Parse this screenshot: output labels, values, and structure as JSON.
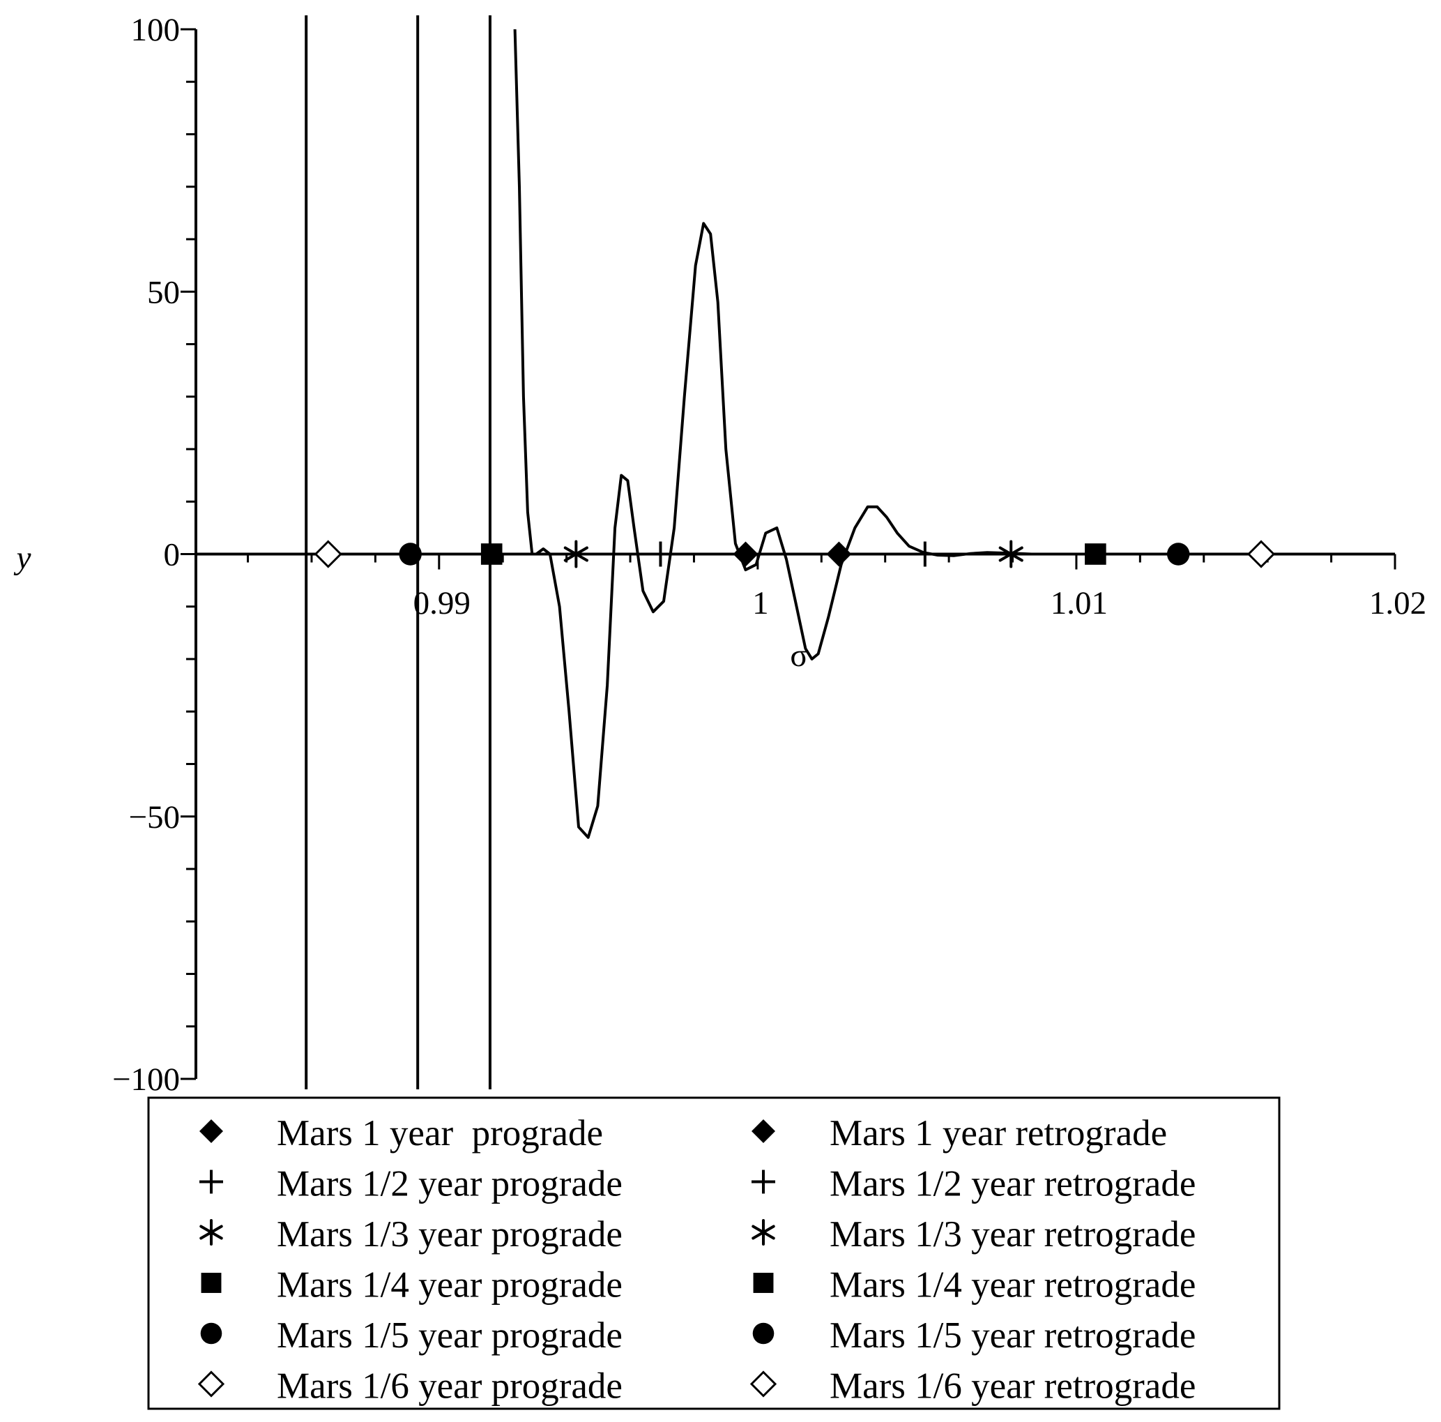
{
  "chart_data": {
    "type": "line",
    "xlabel": "σ",
    "ylabel": "y",
    "xlim": [
      0.9825,
      1.02
    ],
    "ylim": [
      -100,
      100
    ],
    "x_ticks": [
      {
        "value": 0.99,
        "label": "0.99"
      },
      {
        "value": 1.0,
        "label": "1"
      },
      {
        "value": 1.01,
        "label": "1.01"
      },
      {
        "value": 1.02,
        "label": "1.02"
      }
    ],
    "y_ticks": [
      {
        "value": 100,
        "label": "100"
      },
      {
        "value": 50,
        "label": "50"
      },
      {
        "value": 0,
        "label": "0"
      },
      {
        "value": -50,
        "label": "−50"
      },
      {
        "value": -100,
        "label": "−100"
      }
    ],
    "vertical_lines_x": [
      0.98583,
      0.98933,
      0.9916
    ],
    "curve": {
      "x": [
        0.99238,
        0.99252,
        0.99265,
        0.99278,
        0.99292,
        0.99305,
        0.99327,
        0.99348,
        0.99378,
        0.99408,
        0.99438,
        0.99468,
        0.99498,
        0.99528,
        0.99552,
        0.99572,
        0.99592,
        0.99612,
        0.9964,
        0.99672,
        0.99705,
        0.99738,
        0.9977,
        0.99805,
        0.9983,
        0.99852,
        0.99875,
        0.999,
        0.9993,
        0.99962,
        0.99995,
        1.00025,
        1.0006,
        1.0009,
        1.00122,
        1.0015,
        1.0017,
        1.0019,
        1.00222,
        1.00262,
        1.00305,
        1.00345,
        1.00375,
        1.00405,
        1.00438,
        1.00475,
        1.0052,
        1.00565,
        1.00615,
        1.00668,
        1.0072,
        1.00775,
        1.0082,
        1.0086,
        1.00905,
        1.00955,
        1.0101,
        1.0106,
        1.0111,
        1.01165,
        1.01225,
        1.0129,
        1.0136,
        1.0144,
        1.0152,
        1.0162,
        1.0175,
        1.019,
        1.02
      ],
      "y": [
        100,
        70,
        30,
        8,
        0,
        0,
        1,
        0,
        -10,
        -30,
        -52,
        -54,
        -48,
        -25,
        5,
        15,
        14,
        5,
        -7,
        -11,
        -9,
        5,
        30,
        55,
        63,
        61,
        48,
        20,
        2,
        -3,
        -2,
        4,
        5,
        -1,
        -10,
        -18,
        -20,
        -19,
        -12,
        -2,
        5,
        9,
        9,
        7,
        4,
        1.5,
        0.3,
        -0.2,
        -0.3,
        0.1,
        0.3,
        0.2,
        0.1,
        0,
        0,
        0,
        0,
        0,
        0,
        0,
        0,
        0,
        0,
        0,
        0,
        0,
        0,
        0,
        0
      ]
    },
    "markers": [
      {
        "x": 0.98652,
        "y": 0,
        "shape": "diamond-open"
      },
      {
        "x": 0.9891,
        "y": 0,
        "shape": "circle"
      },
      {
        "x": 0.99165,
        "y": 0,
        "shape": "square"
      },
      {
        "x": 0.9943,
        "y": 0,
        "shape": "asterisk"
      },
      {
        "x": 0.99695,
        "y": 0,
        "shape": "plus"
      },
      {
        "x": 0.99962,
        "y": 0,
        "shape": "diamond"
      },
      {
        "x": 1.00255,
        "y": 0,
        "shape": "diamond"
      },
      {
        "x": 1.00525,
        "y": 0,
        "shape": "plus"
      },
      {
        "x": 1.00795,
        "y": 0,
        "shape": "asterisk"
      },
      {
        "x": 1.0106,
        "y": 0,
        "shape": "square"
      },
      {
        "x": 1.0132,
        "y": 0,
        "shape": "circle"
      },
      {
        "x": 1.0158,
        "y": 0,
        "shape": "diamond-open"
      }
    ],
    "legend": {
      "placement": "bottom",
      "entries": [
        {
          "shape": "diamond",
          "label": "Mars 1 year  prograde"
        },
        {
          "shape": "diamond",
          "label": "Mars 1 year retrograde"
        },
        {
          "shape": "plus",
          "label": "Mars 1/2 year prograde"
        },
        {
          "shape": "plus",
          "label": "Mars 1/2 year retrograde"
        },
        {
          "shape": "asterisk",
          "label": "Mars 1/3 year prograde"
        },
        {
          "shape": "asterisk",
          "label": "Mars 1/3 year retrograde"
        },
        {
          "shape": "square",
          "label": "Mars 1/4 year prograde"
        },
        {
          "shape": "square",
          "label": "Mars 1/4 year retrograde"
        },
        {
          "shape": "circle",
          "label": "Mars 1/5 year prograde"
        },
        {
          "shape": "circle",
          "label": "Mars 1/5 year retrograde"
        },
        {
          "shape": "diamond-open",
          "label": "Mars 1/6 year prograde"
        },
        {
          "shape": "diamond-open",
          "label": "Mars 1/6 year retrograde"
        }
      ]
    },
    "grid": false,
    "colors": {
      "line": "#000000",
      "background": "#ffffff"
    }
  }
}
